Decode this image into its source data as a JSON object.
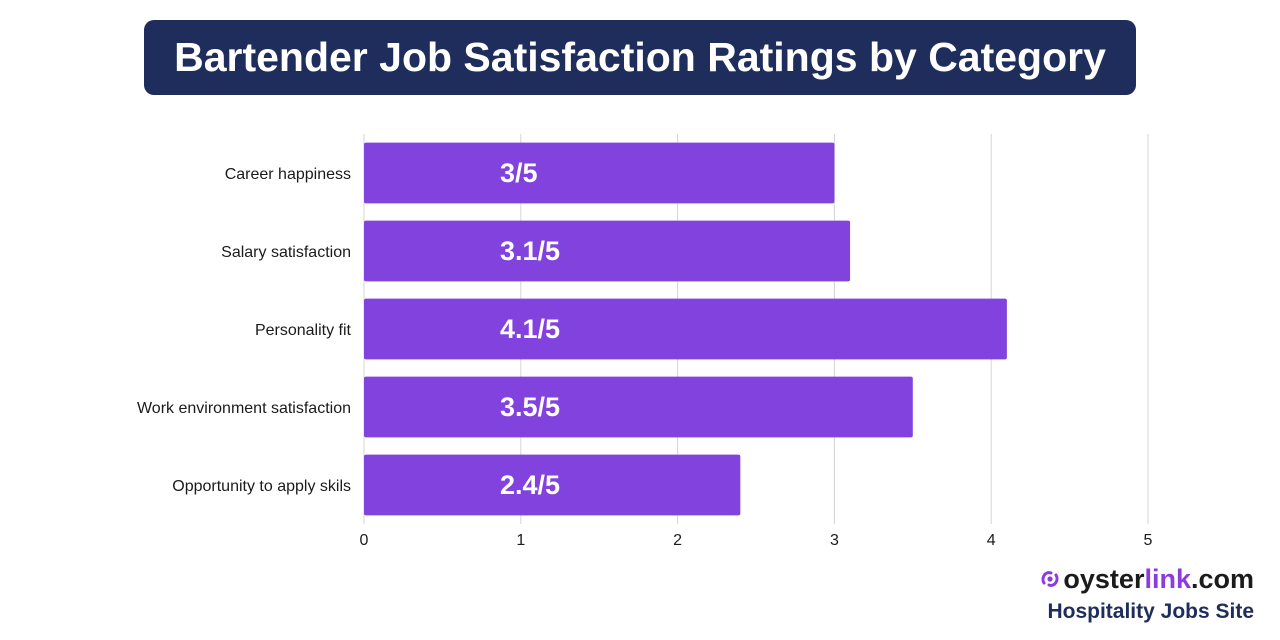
{
  "colors": {
    "title_bg": "#1e2d5c",
    "bar": "#8142de",
    "brand_accent": "#8b3be0"
  },
  "chart_data": {
    "type": "bar",
    "orientation": "horizontal",
    "title": "Bartender Job Satisfaction Ratings by Category",
    "categories": [
      "Career happiness",
      "Salary satisfaction",
      "Personality fit",
      "Work environment satisfaction",
      "Opportunity to apply skils"
    ],
    "values": [
      3,
      3.1,
      4.1,
      3.5,
      2.4
    ],
    "data_labels": [
      "3/5",
      "3.1/5",
      "4.1/5",
      "3.5/5",
      "2.4/5"
    ],
    "xlim": [
      0,
      5
    ],
    "x_ticks": [
      "0",
      "1",
      "2",
      "3",
      "4",
      "5"
    ],
    "grid": true,
    "xlabel": "",
    "ylabel": ""
  },
  "brand": {
    "name_part1": "oyster",
    "name_part2": "link",
    "name_part3": ".com",
    "icon": "oyster-pearl-icon",
    "tagline": "Hospitality Jobs Site"
  }
}
